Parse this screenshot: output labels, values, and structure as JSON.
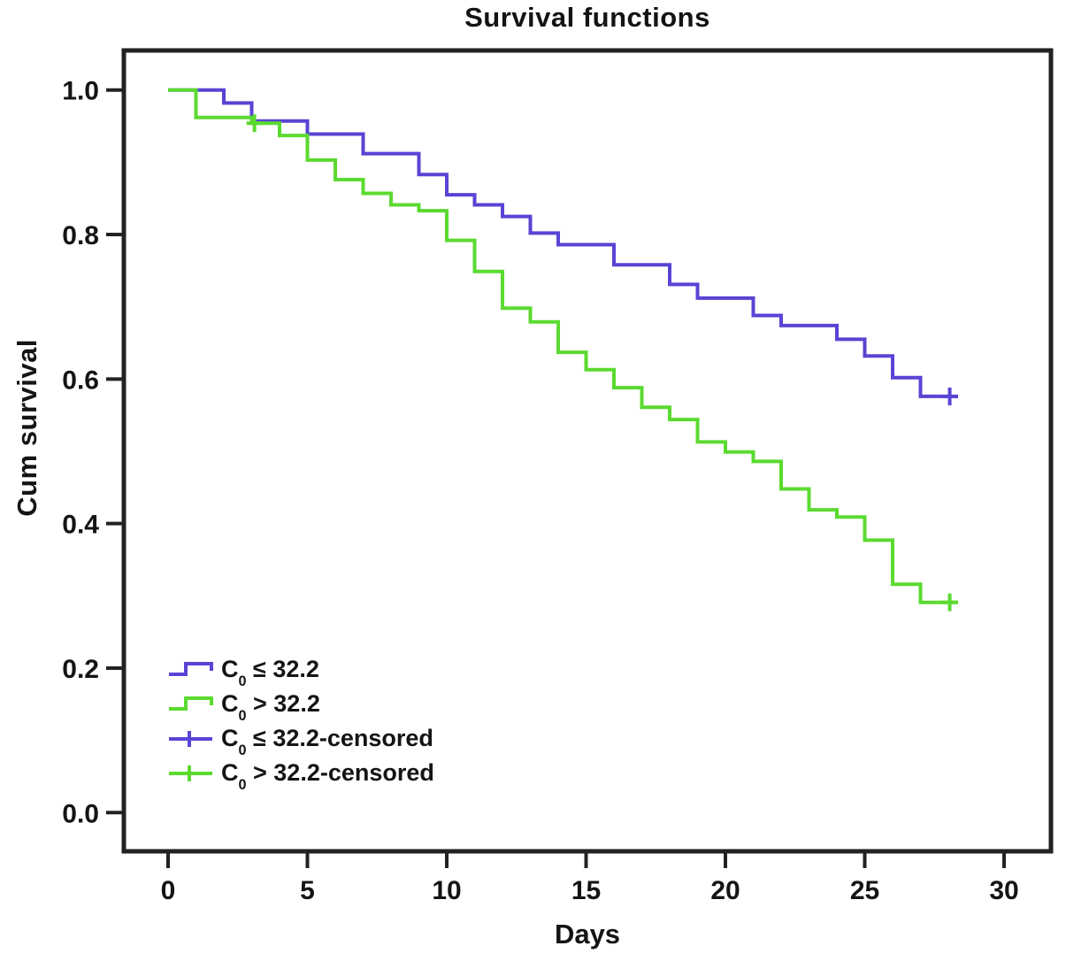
{
  "title": "Survival functions",
  "axes": {
    "x_label": "Days",
    "y_label": "Cum survival",
    "x_tick_labels": [
      "0",
      "5",
      "10",
      "15",
      "20",
      "25",
      "30"
    ],
    "y_tick_labels": [
      "0.0",
      "0.2",
      "0.4",
      "0.6",
      "0.8",
      "1.0"
    ]
  },
  "colors": {
    "le_group": "#5844d4",
    "gt_group": "#5bda30",
    "axis": "#222222",
    "text": "#141414"
  },
  "legend": {
    "items": [
      {
        "symbol": "step",
        "color_key": "le_group",
        "c": "C",
        "sub": "0",
        "rest": " ≤ 32.2"
      },
      {
        "symbol": "step",
        "color_key": "gt_group",
        "c": "C",
        "sub": "0",
        "rest": " > 32.2"
      },
      {
        "symbol": "plus",
        "color_key": "le_group",
        "c": "C",
        "sub": "0",
        "rest": " ≤ 32.2-censored"
      },
      {
        "symbol": "plus",
        "color_key": "gt_group",
        "c": "C",
        "sub": "0",
        "rest": " > 32.2-censored"
      }
    ]
  },
  "chart_data": {
    "type": "line",
    "subtype": "kaplan-meier-step",
    "title": "Survival functions",
    "xlabel": "Days",
    "ylabel": "Cum survival",
    "xlim": [
      -1.6,
      31.8
    ],
    "ylim": [
      -0.055,
      1.055
    ],
    "xticks": [
      0,
      5,
      10,
      15,
      20,
      25,
      30
    ],
    "yticks": [
      0.0,
      0.2,
      0.4,
      0.6,
      0.8,
      1.0
    ],
    "grid": false,
    "legend_position": "inside-bottom-left",
    "series": [
      {
        "name": "C0 ≤ 32.2",
        "color_key": "le_group",
        "step": "post",
        "points": [
          [
            0,
            1.0
          ],
          [
            2,
            0.982
          ],
          [
            3,
            0.957
          ],
          [
            5,
            0.939
          ],
          [
            7,
            0.912
          ],
          [
            9,
            0.883
          ],
          [
            10,
            0.855
          ],
          [
            11,
            0.841
          ],
          [
            12,
            0.825
          ],
          [
            13,
            0.802
          ],
          [
            14,
            0.786
          ],
          [
            16,
            0.758
          ],
          [
            18,
            0.731
          ],
          [
            19,
            0.712
          ],
          [
            21,
            0.688
          ],
          [
            22,
            0.674
          ],
          [
            24,
            0.655
          ],
          [
            25,
            0.632
          ],
          [
            26,
            0.602
          ],
          [
            27,
            0.576
          ],
          [
            28.35,
            0.576
          ]
        ],
        "censored_points": [
          [
            28.05,
            0.576
          ]
        ]
      },
      {
        "name": "C0 > 32.2",
        "color_key": "gt_group",
        "step": "post",
        "points": [
          [
            0,
            1.0
          ],
          [
            1,
            0.962
          ],
          [
            3,
            0.954
          ],
          [
            4,
            0.937
          ],
          [
            5,
            0.903
          ],
          [
            6,
            0.876
          ],
          [
            7,
            0.857
          ],
          [
            8,
            0.841
          ],
          [
            9,
            0.833
          ],
          [
            10,
            0.792
          ],
          [
            11,
            0.749
          ],
          [
            12,
            0.698
          ],
          [
            13,
            0.679
          ],
          [
            14,
            0.637
          ],
          [
            15,
            0.613
          ],
          [
            16,
            0.588
          ],
          [
            17,
            0.561
          ],
          [
            18,
            0.544
          ],
          [
            19,
            0.513
          ],
          [
            20,
            0.499
          ],
          [
            21,
            0.486
          ],
          [
            22,
            0.448
          ],
          [
            23,
            0.419
          ],
          [
            24,
            0.409
          ],
          [
            25,
            0.377
          ],
          [
            26,
            0.316
          ],
          [
            27,
            0.291
          ],
          [
            28.35,
            0.291
          ]
        ],
        "censored_points": [
          [
            3.1,
            0.954
          ],
          [
            28.05,
            0.291
          ]
        ]
      }
    ]
  }
}
